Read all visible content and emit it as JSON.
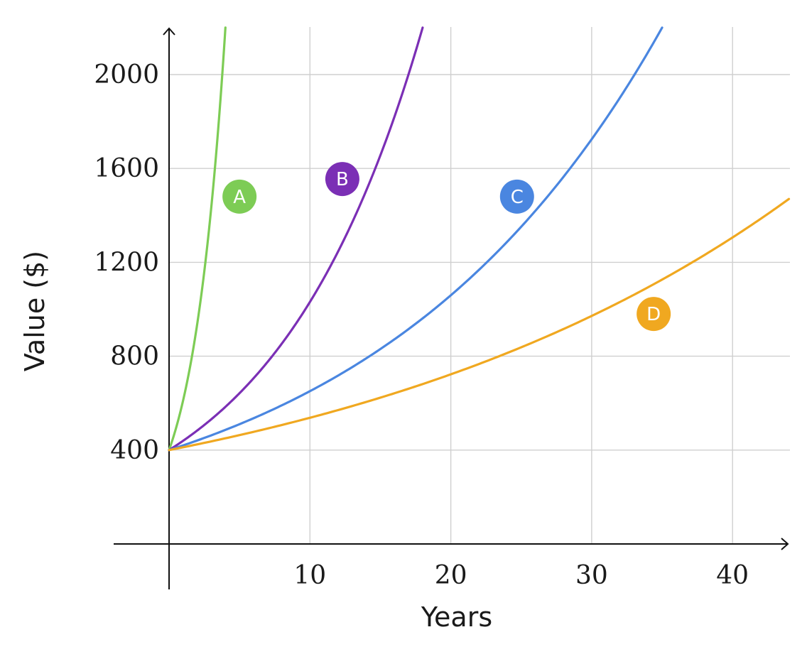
{
  "chart_data": {
    "type": "line",
    "title": "",
    "xlabel": "Years",
    "ylabel": "Value ($)",
    "xlim": [
      0,
      44
    ],
    "ylim": [
      0,
      2200
    ],
    "x_ticks": [
      10,
      20,
      30,
      40
    ],
    "y_ticks": [
      400,
      800,
      1200,
      1600,
      2000
    ],
    "grid": true,
    "initial_value": 400,
    "series": [
      {
        "name": "A",
        "color": "#7dcc55",
        "values": [
          [
            0,
            400
          ],
          [
            1,
            632
          ],
          [
            2,
            998
          ],
          [
            3,
            1577
          ],
          [
            4,
            2200
          ]
        ],
        "marker": {
          "x": 5,
          "y": 1480
        }
      },
      {
        "name": "B",
        "color": "#7b2fb5",
        "values": [
          [
            0,
            400
          ],
          [
            5,
            645
          ],
          [
            10,
            1040
          ],
          [
            15,
            1677
          ],
          [
            18,
            2200
          ]
        ],
        "marker": {
          "x": 12.3,
          "y": 1555
        }
      },
      {
        "name": "C",
        "color": "#4a86e0",
        "values": [
          [
            0,
            400
          ],
          [
            10,
            650
          ],
          [
            20,
            1058
          ],
          [
            30,
            1720
          ],
          [
            35,
            2200
          ]
        ],
        "marker": {
          "x": 24.7,
          "y": 1480
        }
      },
      {
        "name": "D",
        "color": "#f0a820",
        "values": [
          [
            0,
            400
          ],
          [
            10,
            538
          ],
          [
            20,
            722
          ],
          [
            30,
            970
          ],
          [
            40,
            1303
          ],
          [
            44,
            1470
          ]
        ],
        "marker": {
          "x": 34.4,
          "y": 980
        }
      }
    ]
  }
}
